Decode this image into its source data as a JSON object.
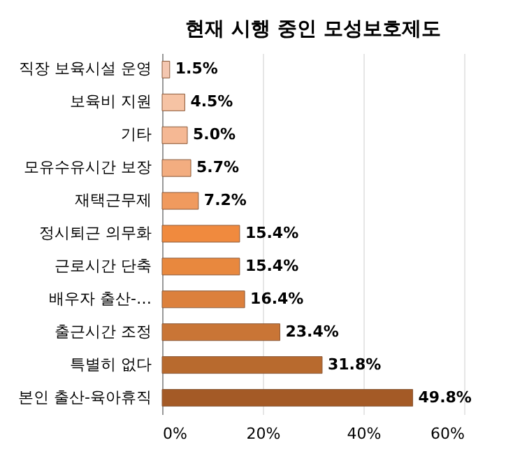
{
  "chart_data": {
    "type": "bar",
    "orientation": "horizontal",
    "title": "현재 시행 중인 모성보호제도",
    "categories": [
      "직장 보육시설 운영",
      "보육비 지원",
      "기타",
      "모유수유시간 보장",
      "재택근무제",
      "정시퇴근 의무화",
      "근로시간 단축",
      "배우자 출산-…",
      "출근시간 조정",
      "특별히 없다",
      "본인 출산-육아휴직"
    ],
    "values": [
      1.5,
      4.5,
      5.0,
      5.7,
      7.2,
      15.4,
      15.4,
      16.4,
      23.4,
      31.8,
      49.8
    ],
    "colors": [
      "#f4c7b0",
      "#f6c3a4",
      "#f5b894",
      "#f3ad80",
      "#f09a5e",
      "#f08a3e",
      "#e8883e",
      "#dc803c",
      "#c97536",
      "#b86a2e",
      "#a45a26"
    ],
    "value_labels": [
      "1.5%",
      "4.5%",
      "5.0%",
      "5.7%",
      "7.2%",
      "15.4%",
      "15.4%",
      "16.4%",
      "23.4%",
      "31.8%",
      "49.8%"
    ],
    "xlim": [
      0,
      60
    ],
    "xticks": [
      {
        "value": 0,
        "label": "0%"
      },
      {
        "value": 20,
        "label": "20%"
      },
      {
        "value": 40,
        "label": "40%"
      },
      {
        "value": 60,
        "label": "60%"
      }
    ],
    "grid": "x"
  }
}
